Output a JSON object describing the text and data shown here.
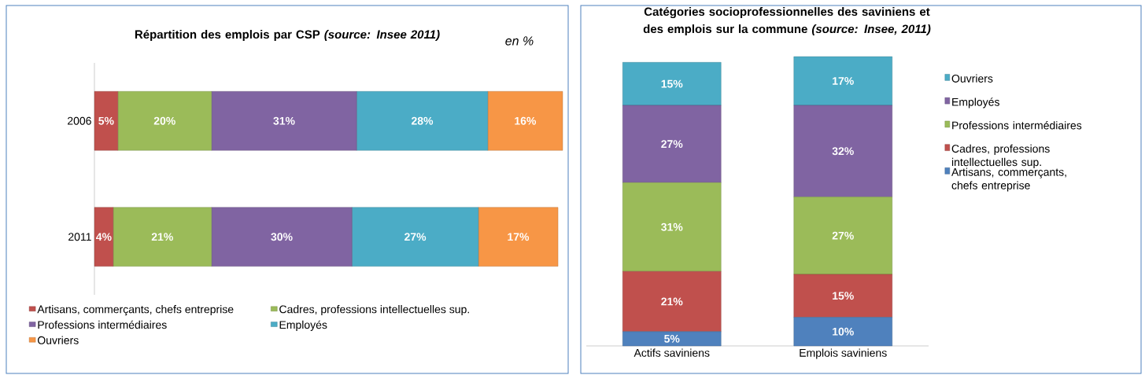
{
  "chart_data": [
    {
      "type": "bar",
      "title": "Répartition des emplois par CSP *(source: Insee 2011)*",
      "annotations": [
        "en %"
      ],
      "orientation": "horizontal",
      "stacked": true,
      "legend": "bottom",
      "tick_labels": "y",
      "categories": [
        "2006",
        "2011"
      ],
      "series": [
        {
          "name": "Artisans, commerçants, chefs entreprise",
          "color": "#c0504d",
          "values": [
            5,
            4
          ],
          "value_labels": [
            "5%",
            "4%"
          ]
        },
        {
          "name": "Cadres, professions intellectuelles sup.",
          "color": "#9bbb59",
          "values": [
            20,
            21
          ],
          "value_labels": [
            "20%",
            "21%"
          ]
        },
        {
          "name": "Professions intermédiaires",
          "color": "#8064a2",
          "values": [
            31,
            30
          ],
          "value_labels": [
            "31%",
            "30%"
          ]
        },
        {
          "name": "Employés",
          "color": "#4bacc6",
          "values": [
            28,
            27
          ],
          "value_labels": [
            "28%",
            "27%"
          ]
        },
        {
          "name": "Ouvriers",
          "color": "#f79646",
          "values": [
            16,
            17
          ],
          "value_labels": [
            "16%",
            "17%"
          ]
        }
      ]
    },
    {
      "type": "bar",
      "title": "Catégories socioprofessionnelles des saviniens et des emplois sur la commune *(source: Insee, 2011)*",
      "stacked": true,
      "legend": "right",
      "tick_labels": "x",
      "categories": [
        "Actifs saviniens",
        "Emplois saviniens"
      ],
      "series": [
        {
          "name": "Artisans, commerçants, chefs entreprise",
          "color": "#4f81bd",
          "values": [
            5,
            10
          ],
          "value_labels": [
            "5%",
            "10%"
          ]
        },
        {
          "name": "Cadres, professions intellectuelles sup.",
          "color": "#c0504d",
          "values": [
            21,
            15
          ],
          "value_labels": [
            "21%",
            "15%"
          ]
        },
        {
          "name": "Professions intermédiaires",
          "color": "#9bbb59",
          "values": [
            31,
            27
          ],
          "value_labels": [
            "31%",
            "27%"
          ]
        },
        {
          "name": "Employés",
          "color": "#8064a2",
          "values": [
            27,
            32
          ],
          "value_labels": [
            "27%",
            "32%"
          ]
        },
        {
          "name": "Ouvriers",
          "color": "#4bacc6",
          "values": [
            15,
            17
          ],
          "value_labels": [
            "15%",
            "17%"
          ]
        }
      ]
    }
  ]
}
